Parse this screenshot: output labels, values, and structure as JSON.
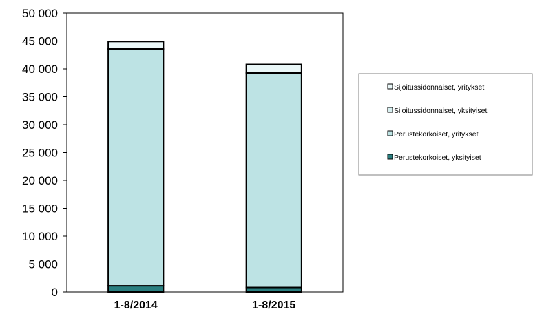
{
  "chart_data": {
    "type": "bar",
    "stacked": true,
    "categories": [
      "1-8/2014",
      "1-8/2015"
    ],
    "series": [
      {
        "name": "Perustekorkoiset, yksityiset",
        "values": [
          1100,
          800
        ],
        "color": "#2a7f80"
      },
      {
        "name": "Perustekorkoiset, yritykset",
        "values": [
          42400,
          38400
        ],
        "color": "#bde3e4"
      },
      {
        "name": "Sijoitussidonnaiset, yksityiset",
        "values": [
          100,
          100
        ],
        "color": "#d8f0f1"
      },
      {
        "name": "Sijoitussidonnaiset, yritykset",
        "values": [
          1300,
          1500
        ],
        "color": "#eaf7f8"
      }
    ],
    "yticks": [
      "0",
      "5 000",
      "10 000",
      "15 000",
      "20 000",
      "25 000",
      "30 000",
      "35 000",
      "40 000",
      "45 000",
      "50 000"
    ],
    "ylim": [
      0,
      50000
    ],
    "grid": false,
    "legend_position": "right",
    "legend_order": [
      "Sijoitussidonnaiset, yritykset",
      "Sijoitussidonnaiset, yksityiset",
      "Perustekorkoiset, yritykset",
      "Perustekorkoiset, yksityiset"
    ]
  }
}
